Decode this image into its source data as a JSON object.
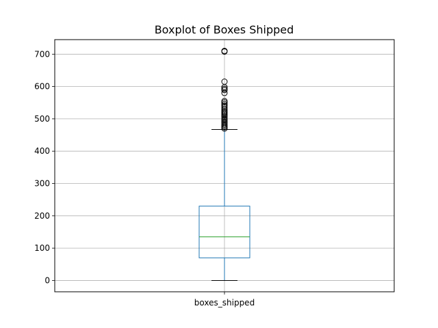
{
  "chart_data": {
    "type": "box",
    "title": "Boxplot of Boxes Shipped",
    "xlabel": "",
    "ylabel": "",
    "categories": [
      "boxes_shipped"
    ],
    "ylim": [
      -35,
      745
    ],
    "y_ticks": [
      0,
      100,
      200,
      300,
      400,
      500,
      600,
      700
    ],
    "grid": true,
    "box": {
      "whisker_low": 0,
      "q1": 70,
      "median": 135,
      "q3": 230,
      "whisker_high": 467
    },
    "outliers": [
      470,
      474,
      478,
      482,
      487,
      491,
      496,
      500,
      505,
      510,
      514,
      518,
      521,
      525,
      530,
      536,
      541,
      546,
      551,
      555,
      580,
      589,
      593,
      598,
      615,
      708,
      710
    ],
    "colors": {
      "box": "#1f77b4",
      "median": "#2ca02c",
      "whisker_cap": "#000000",
      "outlier": "#000000",
      "grid": "#b0b0b0"
    }
  }
}
